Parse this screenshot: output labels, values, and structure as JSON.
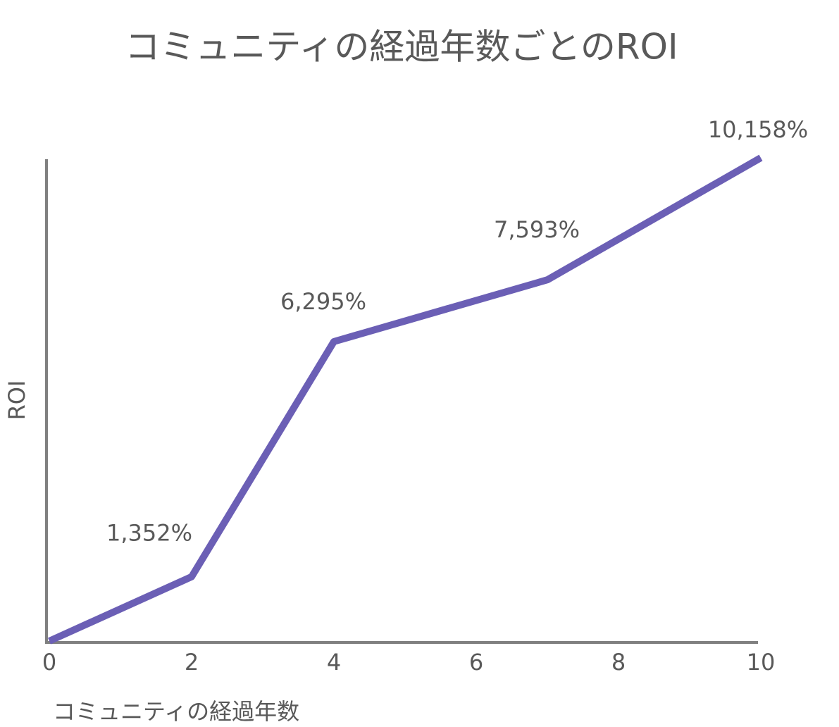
{
  "chart_data": {
    "type": "line",
    "title": "コミュニティの経過年数ごとのROI",
    "x_label": "コミュニティの経過年数",
    "y_label": "ROI",
    "x": [
      0,
      2,
      4,
      7,
      10
    ],
    "values": [
      0,
      1352,
      6295,
      7593,
      10158
    ],
    "value_labels": [
      null,
      "1,352%",
      "6,295%",
      "7,593%",
      "10,158%"
    ],
    "color": "#6b5fb5",
    "xlim": [
      0,
      10
    ],
    "xticks": [
      0,
      2,
      4,
      6,
      8,
      10
    ],
    "ylim": [
      0,
      10158
    ]
  }
}
